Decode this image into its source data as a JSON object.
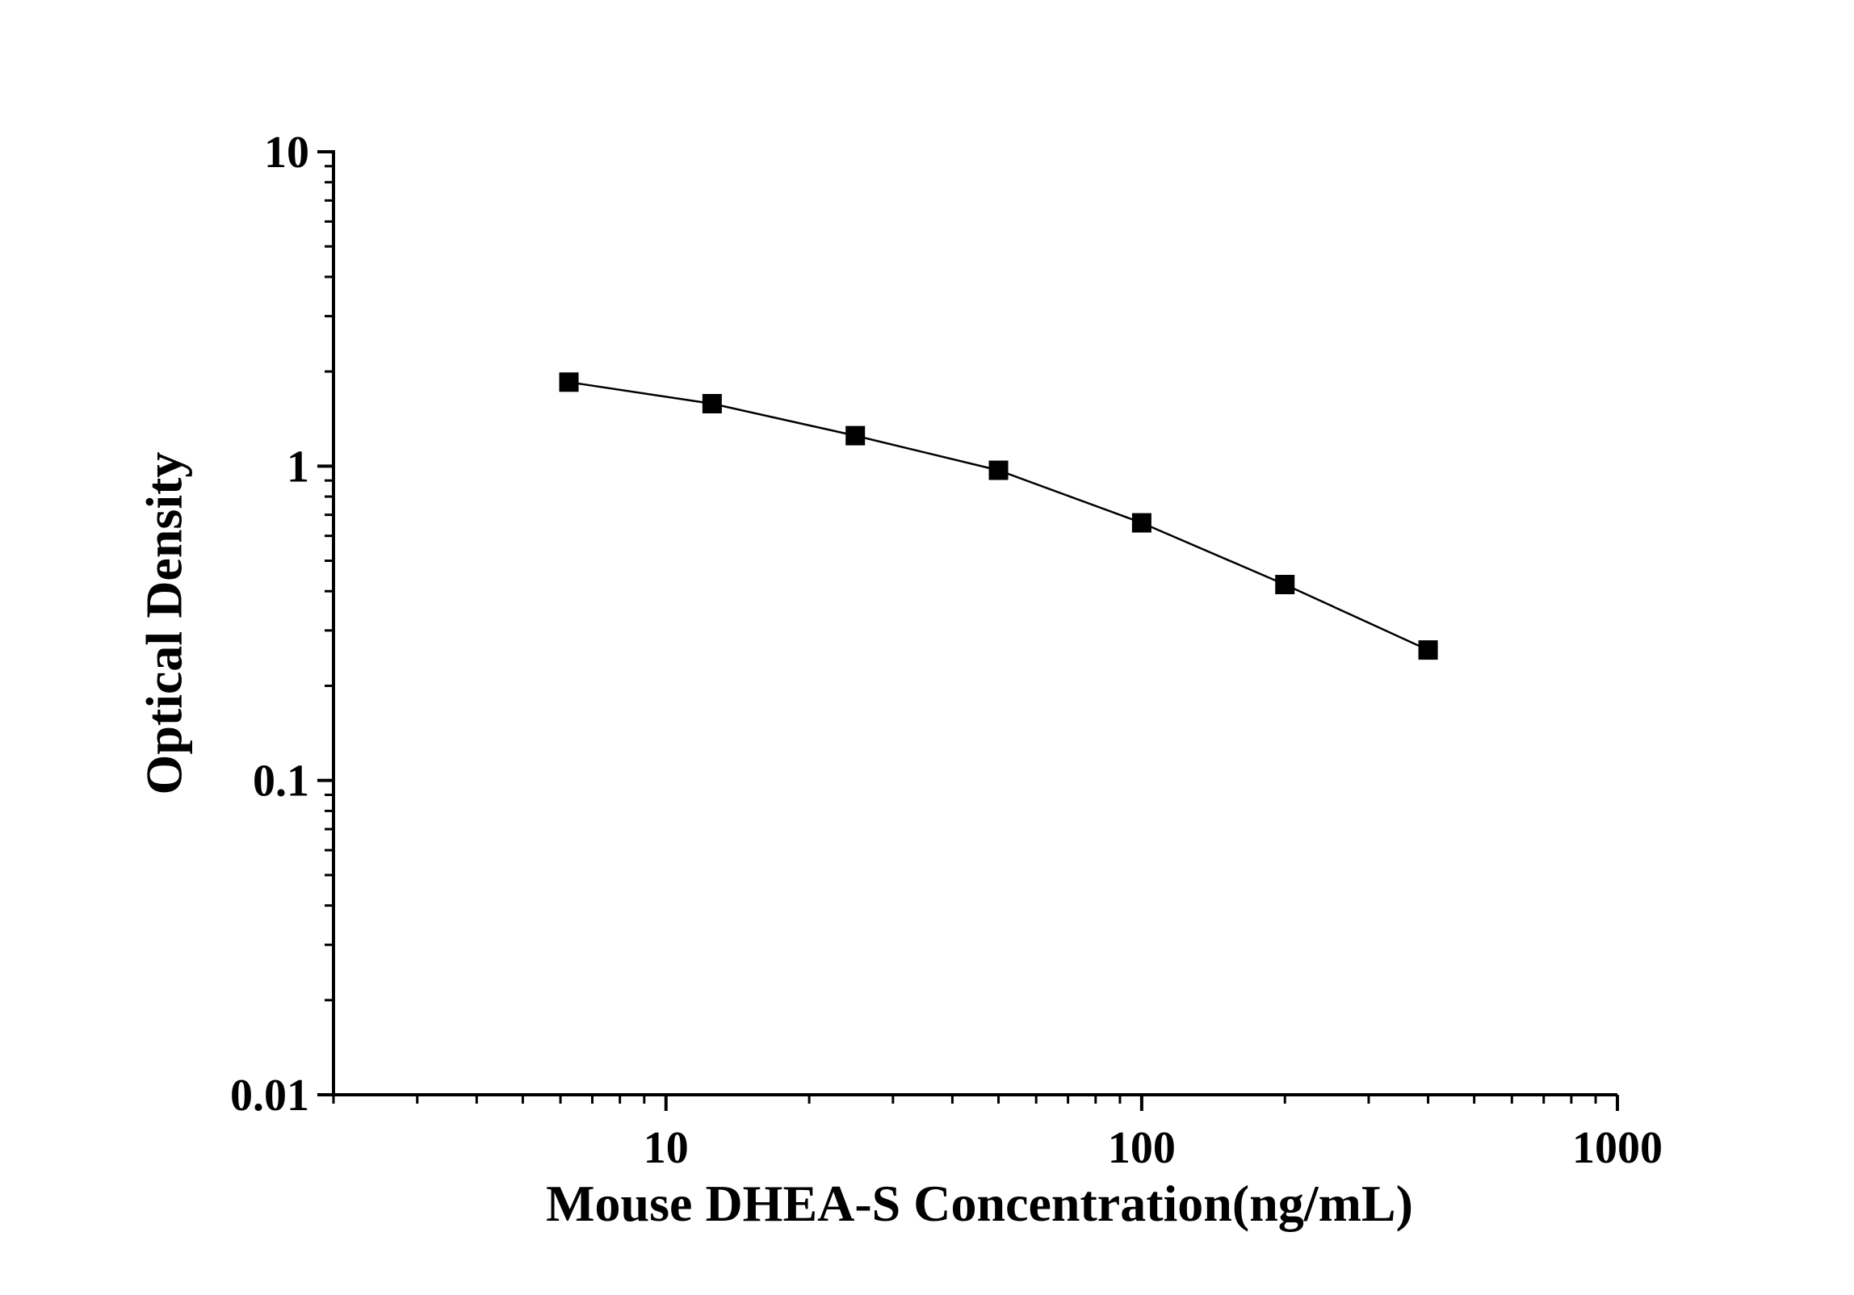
{
  "chart_data": {
    "type": "line",
    "title": "",
    "xlabel": "Mouse DHEA-S Concentration(ng/mL)",
    "ylabel": "Optical Density",
    "xscale": "log",
    "yscale": "log",
    "xlim": [
      2,
      1000
    ],
    "ylim": [
      0.01,
      10
    ],
    "x_ticks": [
      10,
      100,
      1000
    ],
    "x_tick_labels": [
      "10",
      "100",
      "1000"
    ],
    "y_ticks": [
      0.01,
      0.1,
      1,
      10
    ],
    "y_tick_labels": [
      "0.01",
      "0.1",
      "1",
      "10"
    ],
    "grid": false,
    "legend": "none",
    "marker": "square",
    "series": [
      {
        "x": [
          6.25,
          12.5,
          25,
          50,
          100,
          200,
          400
        ],
        "y": [
          1.85,
          1.58,
          1.25,
          0.97,
          0.66,
          0.42,
          0.26
        ]
      }
    ],
    "colors": {
      "line": "#000000",
      "marker": "#000000",
      "axis": "#000000"
    }
  }
}
